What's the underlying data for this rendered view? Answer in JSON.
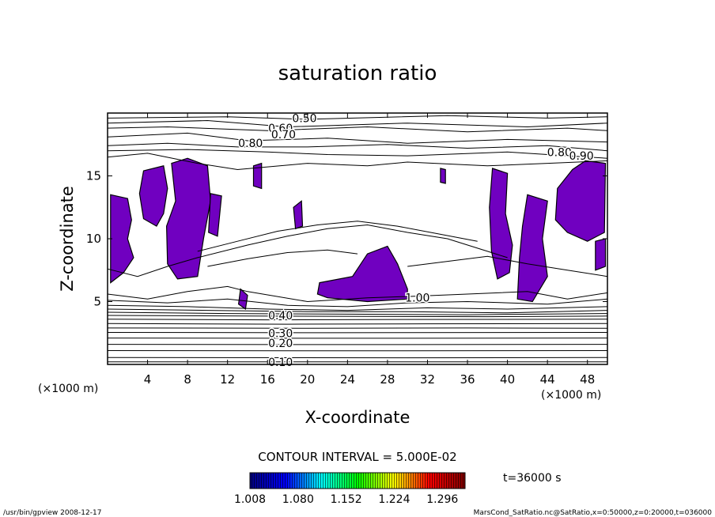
{
  "chart_data": {
    "type": "contour",
    "title": "saturation ratio",
    "xlabel": "X-coordinate",
    "ylabel": "Z-coordinate",
    "x_unit": "(×1000 m)",
    "y_unit": "(×1000 m)",
    "xlim": [
      0,
      50
    ],
    "ylim": [
      0,
      20
    ],
    "x_ticks": [
      "4",
      "8",
      "12",
      "16",
      "20",
      "24",
      "28",
      "32",
      "36",
      "40",
      "44",
      "48"
    ],
    "y_ticks": [
      "5",
      "10",
      "15"
    ],
    "contour_labels": [
      {
        "text": "0.50",
        "x": 19.7,
        "z": 19.6
      },
      {
        "text": "0.60",
        "x": 17.3,
        "z": 18.8
      },
      {
        "text": "0.70",
        "x": 17.6,
        "z": 18.3
      },
      {
        "text": "0.80",
        "x": 14.3,
        "z": 17.6
      },
      {
        "text": "0.80",
        "x": 45.2,
        "z": 16.9
      },
      {
        "text": "0.90",
        "x": 47.4,
        "z": 16.6
      },
      {
        "text": "1.00",
        "x": 31.0,
        "z": 5.3
      },
      {
        "text": "0.40",
        "x": 17.3,
        "z": 3.9
      },
      {
        "text": "0.30",
        "x": 17.3,
        "z": 2.5
      },
      {
        "text": "0.20",
        "x": 17.3,
        "z": 1.7
      },
      {
        "text": "0.10",
        "x": 17.3,
        "z": 0.2
      }
    ],
    "contour_interval_text": "CONTOUR INTERVAL = 5.000E-02",
    "time_text": "t=36000 s",
    "colorbar": {
      "ticks": [
        "1.008",
        "1.080",
        "1.152",
        "1.224",
        "1.296"
      ],
      "range": [
        1.008,
        1.33
      ],
      "colors": [
        "#000080",
        "#0000ff",
        "#00ffff",
        "#00ff00",
        "#ffff00",
        "#ff0000",
        "#800000"
      ]
    },
    "shading_color": "#7000c0",
    "shaded_regions_x_z": [
      [
        [
          0.3,
          13.5
        ],
        [
          2.0,
          13.2
        ],
        [
          2.4,
          11.5
        ],
        [
          2.0,
          10.0
        ],
        [
          2.6,
          8.5
        ],
        [
          1.6,
          7.3
        ],
        [
          0.3,
          6.5
        ]
      ],
      [
        [
          3.6,
          15.4
        ],
        [
          5.6,
          15.8
        ],
        [
          6.0,
          14.0
        ],
        [
          5.6,
          12.0
        ],
        [
          4.9,
          11.0
        ],
        [
          3.6,
          11.6
        ],
        [
          3.2,
          13.6
        ]
      ],
      [
        [
          6.4,
          16.0
        ],
        [
          8.0,
          16.4
        ],
        [
          10.0,
          15.8
        ],
        [
          10.3,
          13.0
        ],
        [
          9.6,
          10.0
        ],
        [
          9.0,
          7.0
        ],
        [
          7.0,
          6.8
        ],
        [
          6.0,
          8.0
        ],
        [
          5.9,
          11.0
        ],
        [
          6.8,
          13.0
        ]
      ],
      [
        [
          10.3,
          13.6
        ],
        [
          11.4,
          13.4
        ],
        [
          11.0,
          10.2
        ],
        [
          10.1,
          10.5
        ]
      ],
      [
        [
          13.3,
          6.0
        ],
        [
          14.0,
          5.5
        ],
        [
          13.8,
          4.4
        ],
        [
          13.1,
          4.8
        ]
      ],
      [
        [
          21.2,
          6.5
        ],
        [
          24.5,
          7.0
        ],
        [
          26.0,
          8.8
        ],
        [
          28.0,
          9.4
        ],
        [
          29.0,
          8.0
        ],
        [
          30.0,
          6.0
        ],
        [
          30.0,
          5.2
        ],
        [
          26.0,
          5.0
        ],
        [
          22.0,
          5.3
        ],
        [
          21.0,
          5.6
        ]
      ],
      [
        [
          38.5,
          15.6
        ],
        [
          40.0,
          15.2
        ],
        [
          39.8,
          12.0
        ],
        [
          40.5,
          9.5
        ],
        [
          40.2,
          7.3
        ],
        [
          39.0,
          6.8
        ],
        [
          38.4,
          9.0
        ],
        [
          38.2,
          12.5
        ]
      ],
      [
        [
          42.0,
          13.5
        ],
        [
          44.0,
          13.0
        ],
        [
          43.5,
          10.0
        ],
        [
          44.0,
          7.0
        ],
        [
          42.5,
          5.0
        ],
        [
          41.0,
          5.2
        ],
        [
          41.2,
          8.5
        ],
        [
          41.5,
          11.0
        ]
      ],
      [
        [
          45.0,
          14.0
        ],
        [
          46.5,
          15.5
        ],
        [
          47.8,
          16.2
        ],
        [
          49.8,
          16.0
        ],
        [
          49.7,
          10.5
        ],
        [
          48.0,
          9.8
        ],
        [
          46.0,
          10.5
        ],
        [
          44.8,
          11.5
        ]
      ],
      [
        [
          48.8,
          9.8
        ],
        [
          49.8,
          10.0
        ],
        [
          49.8,
          7.8
        ],
        [
          48.8,
          7.5
        ]
      ],
      [
        [
          18.6,
          12.5
        ],
        [
          19.4,
          13.0
        ],
        [
          19.5,
          11.0
        ],
        [
          18.8,
          10.8
        ]
      ],
      [
        [
          14.6,
          15.8
        ],
        [
          15.4,
          16.0
        ],
        [
          15.4,
          14.0
        ],
        [
          14.6,
          14.2
        ]
      ],
      [
        [
          33.3,
          15.6
        ],
        [
          33.8,
          15.5
        ],
        [
          33.8,
          14.4
        ],
        [
          33.3,
          14.5
        ]
      ]
    ],
    "contour_lines_x_z": [
      [
        [
          0,
          19.6
        ],
        [
          12,
          19.7
        ],
        [
          20,
          19.5
        ],
        [
          34,
          19.8
        ],
        [
          44,
          19.6
        ],
        [
          50,
          19.7
        ]
      ],
      [
        [
          0,
          19.2
        ],
        [
          10,
          19.4
        ],
        [
          18,
          18.9
        ],
        [
          30,
          19.2
        ],
        [
          42,
          18.9
        ],
        [
          50,
          19.2
        ]
      ],
      [
        [
          0,
          18.8
        ],
        [
          6,
          18.9
        ],
        [
          16,
          18.6
        ],
        [
          26,
          18.9
        ],
        [
          36,
          18.5
        ],
        [
          46,
          18.8
        ],
        [
          50,
          18.6
        ]
      ],
      [
        [
          0,
          18.1
        ],
        [
          8,
          18.4
        ],
        [
          14,
          17.8
        ],
        [
          22,
          18.0
        ],
        [
          30,
          17.6
        ],
        [
          40,
          17.9
        ],
        [
          50,
          17.7
        ]
      ],
      [
        [
          0,
          17.4
        ],
        [
          6,
          17.6
        ],
        [
          13,
          17.3
        ],
        [
          20,
          17.3
        ],
        [
          28,
          17.5
        ],
        [
          36,
          17.2
        ],
        [
          44,
          17.4
        ],
        [
          50,
          17.0
        ]
      ],
      [
        [
          0,
          17.0
        ],
        [
          8,
          17.1
        ],
        [
          16,
          16.9
        ],
        [
          22,
          16.7
        ],
        [
          30,
          16.6
        ],
        [
          40,
          16.9
        ],
        [
          46,
          16.6
        ],
        [
          50,
          16.4
        ]
      ],
      [
        [
          0,
          16.5
        ],
        [
          4,
          16.8
        ],
        [
          9,
          16.0
        ],
        [
          13,
          15.5
        ],
        [
          20,
          16.0
        ],
        [
          26,
          15.8
        ],
        [
          30,
          16.1
        ],
        [
          38,
          15.8
        ],
        [
          44,
          16.0
        ],
        [
          50,
          16.2
        ]
      ],
      [
        [
          0,
          7.6
        ],
        [
          3,
          7.0
        ],
        [
          6,
          7.8
        ],
        [
          9,
          8.5
        ],
        [
          14,
          9.5
        ],
        [
          18,
          10.2
        ],
        [
          22,
          10.8
        ],
        [
          26,
          11.1
        ],
        [
          30,
          10.5
        ],
        [
          34,
          10.0
        ],
        [
          38,
          9.0
        ],
        [
          40,
          8.5
        ]
      ],
      [
        [
          9,
          9.0
        ],
        [
          13,
          9.8
        ],
        [
          17,
          10.6
        ],
        [
          21,
          11.1
        ],
        [
          25,
          11.4
        ],
        [
          29,
          11.0
        ],
        [
          33,
          10.4
        ],
        [
          37,
          9.8
        ]
      ],
      [
        [
          10,
          7.8
        ],
        [
          14,
          8.4
        ],
        [
          18,
          8.9
        ],
        [
          22,
          9.1
        ],
        [
          25,
          8.8
        ]
      ],
      [
        [
          30,
          7.8
        ],
        [
          34,
          8.2
        ],
        [
          38,
          8.6
        ],
        [
          42,
          8.0
        ],
        [
          46,
          7.5
        ],
        [
          50,
          7.0
        ]
      ],
      [
        [
          0,
          5.6
        ],
        [
          4,
          5.2
        ],
        [
          8,
          5.8
        ],
        [
          12,
          6.2
        ],
        [
          14,
          5.8
        ],
        [
          20,
          5.0
        ],
        [
          26,
          5.3
        ],
        [
          30,
          5.4
        ],
        [
          36,
          5.6
        ],
        [
          42,
          5.8
        ],
        [
          46,
          5.2
        ],
        [
          50,
          5.7
        ]
      ],
      [
        [
          0,
          5.1
        ],
        [
          6,
          4.9
        ],
        [
          12,
          5.2
        ],
        [
          18,
          4.7
        ],
        [
          24,
          4.6
        ],
        [
          30,
          4.9
        ],
        [
          36,
          5.0
        ],
        [
          44,
          4.8
        ],
        [
          50,
          5.2
        ]
      ],
      [
        [
          0,
          4.7
        ],
        [
          8,
          4.6
        ],
        [
          16,
          4.4
        ],
        [
          24,
          4.3
        ],
        [
          32,
          4.5
        ],
        [
          40,
          4.4
        ],
        [
          50,
          4.6
        ]
      ],
      [
        [
          0,
          4.4
        ],
        [
          10,
          4.3
        ],
        [
          20,
          4.2
        ],
        [
          30,
          4.2
        ],
        [
          40,
          4.1
        ],
        [
          50,
          4.3
        ]
      ],
      [
        [
          0,
          4.15
        ],
        [
          12,
          4.05
        ],
        [
          24,
          4.0
        ],
        [
          36,
          3.95
        ],
        [
          50,
          4.05
        ]
      ],
      [
        [
          0,
          3.9
        ],
        [
          14,
          3.85
        ],
        [
          26,
          3.82
        ],
        [
          38,
          3.8
        ],
        [
          50,
          3.85
        ]
      ],
      [
        [
          0,
          3.6
        ],
        [
          16,
          3.55
        ],
        [
          30,
          3.58
        ],
        [
          50,
          3.6
        ]
      ],
      [
        [
          0,
          3.25
        ],
        [
          18,
          3.2
        ],
        [
          32,
          3.23
        ],
        [
          50,
          3.25
        ]
      ],
      [
        [
          0,
          2.9
        ],
        [
          20,
          2.88
        ],
        [
          36,
          2.9
        ],
        [
          50,
          2.88
        ]
      ],
      [
        [
          0,
          2.55
        ],
        [
          22,
          2.52
        ],
        [
          50,
          2.55
        ]
      ],
      [
        [
          0,
          2.1
        ],
        [
          24,
          2.08
        ],
        [
          50,
          2.1
        ]
      ],
      [
        [
          0,
          1.6
        ],
        [
          26,
          1.58
        ],
        [
          50,
          1.6
        ]
      ],
      [
        [
          0,
          1.1
        ],
        [
          28,
          1.08
        ],
        [
          50,
          1.1
        ]
      ],
      [
        [
          0,
          0.55
        ],
        [
          30,
          0.53
        ],
        [
          50,
          0.55
        ]
      ],
      [
        [
          0,
          0.2
        ],
        [
          50,
          0.2
        ]
      ]
    ]
  },
  "footer": {
    "left": "/usr/bin/gpview   2008-12-17",
    "right": "MarsCond_SatRatio.nc@SatRatio,x=0:50000,z=0:20000,t=036000"
  }
}
